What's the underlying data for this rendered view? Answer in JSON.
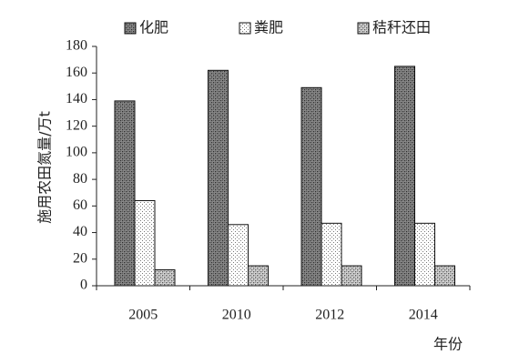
{
  "chart_data": {
    "type": "bar",
    "categories": [
      "2005",
      "2010",
      "2012",
      "2014"
    ],
    "series": [
      {
        "name": "化肥",
        "values": [
          139,
          162,
          149,
          165
        ]
      },
      {
        "name": "粪肥",
        "values": [
          64,
          46,
          47,
          47
        ]
      },
      {
        "name": "秸秆还田",
        "values": [
          12,
          15,
          15,
          15
        ]
      }
    ],
    "ylim": [
      0,
      180
    ],
    "yticks": [
      0,
      20,
      40,
      60,
      80,
      100,
      120,
      140,
      160,
      180
    ],
    "ylabel": "施用农田氮量/万t",
    "xlabel": "年份",
    "legend": "top",
    "grid": false
  }
}
